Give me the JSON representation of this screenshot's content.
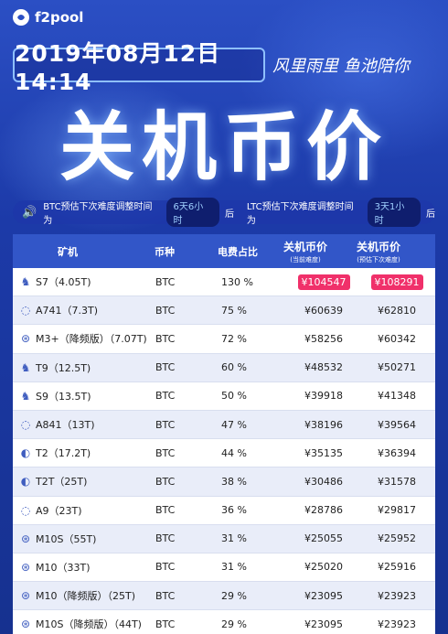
{
  "brand": {
    "name": "f2pool",
    "icon": "fish-logo-icon"
  },
  "header": {
    "datetime": "2019年08月12日 14:14",
    "slogan": "风里雨里 鱼池陪你",
    "title": "关机币价"
  },
  "notice": {
    "icon": "speaker-icon",
    "btc_prefix": "BTC预估下次难度调整时间为",
    "btc_value": "6天6小时",
    "btc_suffix": "后",
    "ltc_prefix": "LTC预估下次难度调整时间为",
    "ltc_value": "3天1小时",
    "ltc_suffix": "后"
  },
  "table": {
    "headers": {
      "miner": "矿机",
      "coin": "币种",
      "power_ratio": "电费占比",
      "price_now": "关机币价",
      "price_now_sub": "(当前难度)",
      "price_next": "关机币价",
      "price_next_sub": "(预估下次难度)"
    },
    "rows": [
      {
        "icon": "antminer-icon",
        "name": "S7（4.05T)",
        "coin": "BTC",
        "pct": "130 %",
        "p1": "¥104547",
        "p2": "¥108291",
        "highlight": true
      },
      {
        "icon": "avalon-icon",
        "name": "A741（7.3T)",
        "coin": "BTC",
        "pct": "75 %",
        "p1": "¥60639",
        "p2": "¥62810",
        "highlight": false
      },
      {
        "icon": "whatsminer-icon",
        "name": "M3+（降频版）（7.07T)",
        "coin": "BTC",
        "pct": "72 %",
        "p1": "¥58256",
        "p2": "¥60342",
        "highlight": false
      },
      {
        "icon": "antminer-icon",
        "name": "T9（12.5T)",
        "coin": "BTC",
        "pct": "60 %",
        "p1": "¥48532",
        "p2": "¥50271",
        "highlight": false
      },
      {
        "icon": "antminer-icon",
        "name": "S9（13.5T)",
        "coin": "BTC",
        "pct": "50 %",
        "p1": "¥39918",
        "p2": "¥41348",
        "highlight": false
      },
      {
        "icon": "avalon-icon",
        "name": "A841（13T)",
        "coin": "BTC",
        "pct": "47 %",
        "p1": "¥38196",
        "p2": "¥39564",
        "highlight": false
      },
      {
        "icon": "halfmoon-icon",
        "name": "T2（17.2T)",
        "coin": "BTC",
        "pct": "44 %",
        "p1": "¥35135",
        "p2": "¥36394",
        "highlight": false
      },
      {
        "icon": "halfmoon-icon",
        "name": "T2T（25T)",
        "coin": "BTC",
        "pct": "38 %",
        "p1": "¥30486",
        "p2": "¥31578",
        "highlight": false
      },
      {
        "icon": "avalon-icon",
        "name": "A9（23T)",
        "coin": "BTC",
        "pct": "36 %",
        "p1": "¥28786",
        "p2": "¥29817",
        "highlight": false
      },
      {
        "icon": "whatsminer-icon",
        "name": "M10S（55T)",
        "coin": "BTC",
        "pct": "31 %",
        "p1": "¥25055",
        "p2": "¥25952",
        "highlight": false
      },
      {
        "icon": "whatsminer-icon",
        "name": "M10（33T)",
        "coin": "BTC",
        "pct": "31 %",
        "p1": "¥25020",
        "p2": "¥25916",
        "highlight": false
      },
      {
        "icon": "whatsminer-icon",
        "name": "M10（降频版）（25T)",
        "coin": "BTC",
        "pct": "29 %",
        "p1": "¥23095",
        "p2": "¥23923",
        "highlight": false
      },
      {
        "icon": "whatsminer-icon",
        "name": "M10S（降频版）（44T)",
        "coin": "BTC",
        "pct": "29 %",
        "p1": "¥23095",
        "p2": "¥23923",
        "highlight": false
      }
    ]
  },
  "colors": {
    "accent": "#3256c8",
    "highlight": "#f0306a",
    "background": "#1c3aa8"
  }
}
